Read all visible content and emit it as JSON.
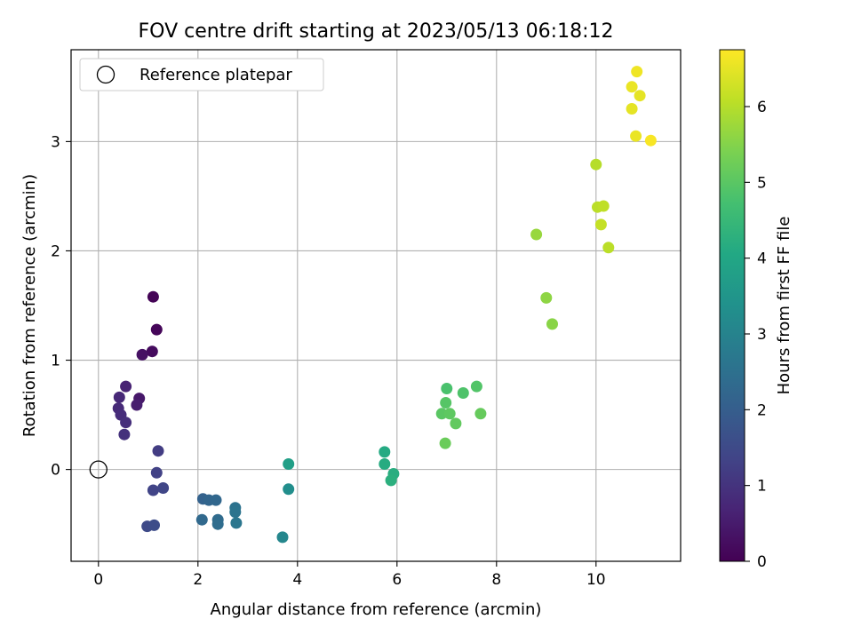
{
  "chart_data": {
    "type": "scatter",
    "title": "FOV centre drift starting at 2023/05/13 06:18:12",
    "xlabel": "Angular distance from reference (arcmin)",
    "ylabel": "Rotation from reference (arcmin)",
    "xlim": [
      -0.55,
      11.7
    ],
    "ylim": [
      -0.84,
      3.84
    ],
    "x_ticks": [
      0,
      2,
      4,
      6,
      8,
      10
    ],
    "y_ticks": [
      0,
      1,
      2,
      3
    ],
    "grid": true,
    "legend": {
      "position": "top-left",
      "label": "Reference platepar"
    },
    "reference_point": {
      "x": 0,
      "y": 0
    },
    "colorbar": {
      "label": "Hours from first FF file",
      "range": [
        0,
        6.75
      ],
      "ticks": [
        0,
        1,
        2,
        3,
        4,
        5,
        6
      ],
      "colormap": "viridis"
    },
    "series": [
      {
        "points": [
          {
            "x": 1.1,
            "y": 1.58,
            "c": 0.05
          },
          {
            "x": 1.17,
            "y": 1.28,
            "c": 0.1
          },
          {
            "x": 1.08,
            "y": 1.08,
            "c": 0.2
          },
          {
            "x": 0.88,
            "y": 1.05,
            "c": 0.3
          },
          {
            "x": 0.82,
            "y": 0.65,
            "c": 0.45
          },
          {
            "x": 0.77,
            "y": 0.59,
            "c": 0.55
          },
          {
            "x": 0.55,
            "y": 0.76,
            "c": 0.65
          },
          {
            "x": 0.42,
            "y": 0.66,
            "c": 0.75
          },
          {
            "x": 0.4,
            "y": 0.56,
            "c": 0.8
          },
          {
            "x": 0.45,
            "y": 0.5,
            "c": 0.85
          },
          {
            "x": 0.55,
            "y": 0.43,
            "c": 0.9
          },
          {
            "x": 0.52,
            "y": 0.32,
            "c": 0.95
          },
          {
            "x": 1.2,
            "y": 0.17,
            "c": 1.2
          },
          {
            "x": 1.17,
            "y": -0.03,
            "c": 1.3
          },
          {
            "x": 1.1,
            "y": -0.19,
            "c": 1.35
          },
          {
            "x": 1.3,
            "y": -0.17,
            "c": 1.4
          },
          {
            "x": 0.98,
            "y": -0.52,
            "c": 1.5
          },
          {
            "x": 1.12,
            "y": -0.51,
            "c": 1.55
          },
          {
            "x": 2.1,
            "y": -0.27,
            "c": 2.1
          },
          {
            "x": 2.22,
            "y": -0.28,
            "c": 2.2
          },
          {
            "x": 2.36,
            "y": -0.28,
            "c": 2.25
          },
          {
            "x": 2.08,
            "y": -0.46,
            "c": 2.3
          },
          {
            "x": 2.4,
            "y": -0.46,
            "c": 2.35
          },
          {
            "x": 2.4,
            "y": -0.5,
            "c": 2.4
          },
          {
            "x": 2.75,
            "y": -0.35,
            "c": 2.55
          },
          {
            "x": 2.75,
            "y": -0.39,
            "c": 2.6
          },
          {
            "x": 2.77,
            "y": -0.49,
            "c": 2.65
          },
          {
            "x": 3.7,
            "y": -0.62,
            "c": 3.1
          },
          {
            "x": 3.82,
            "y": -0.18,
            "c": 3.3
          },
          {
            "x": 3.82,
            "y": 0.05,
            "c": 3.8
          },
          {
            "x": 5.75,
            "y": 0.16,
            "c": 4.1
          },
          {
            "x": 5.75,
            "y": 0.05,
            "c": 4.15
          },
          {
            "x": 5.93,
            "y": -0.04,
            "c": 4.2
          },
          {
            "x": 5.88,
            "y": -0.1,
            "c": 4.25
          },
          {
            "x": 7.0,
            "y": 0.74,
            "c": 4.8
          },
          {
            "x": 7.33,
            "y": 0.7,
            "c": 4.85
          },
          {
            "x": 7.6,
            "y": 0.76,
            "c": 4.9
          },
          {
            "x": 6.98,
            "y": 0.61,
            "c": 4.95
          },
          {
            "x": 6.9,
            "y": 0.51,
            "c": 5.0
          },
          {
            "x": 7.06,
            "y": 0.51,
            "c": 5.05
          },
          {
            "x": 7.18,
            "y": 0.42,
            "c": 5.1
          },
          {
            "x": 7.68,
            "y": 0.51,
            "c": 5.15
          },
          {
            "x": 6.97,
            "y": 0.24,
            "c": 5.2
          },
          {
            "x": 8.8,
            "y": 2.15,
            "c": 5.7
          },
          {
            "x": 9.0,
            "y": 1.57,
            "c": 5.6
          },
          {
            "x": 9.12,
            "y": 1.33,
            "c": 5.55
          },
          {
            "x": 10.0,
            "y": 2.79,
            "c": 6.0
          },
          {
            "x": 10.03,
            "y": 2.4,
            "c": 6.05
          },
          {
            "x": 10.15,
            "y": 2.41,
            "c": 6.1
          },
          {
            "x": 10.1,
            "y": 2.24,
            "c": 6.15
          },
          {
            "x": 10.25,
            "y": 2.03,
            "c": 6.05
          },
          {
            "x": 10.82,
            "y": 3.64,
            "c": 6.6
          },
          {
            "x": 10.72,
            "y": 3.5,
            "c": 6.55
          },
          {
            "x": 10.88,
            "y": 3.42,
            "c": 6.5
          },
          {
            "x": 10.72,
            "y": 3.3,
            "c": 6.5
          },
          {
            "x": 10.8,
            "y": 3.05,
            "c": 6.55
          },
          {
            "x": 11.1,
            "y": 3.01,
            "c": 6.7
          }
        ]
      }
    ]
  }
}
